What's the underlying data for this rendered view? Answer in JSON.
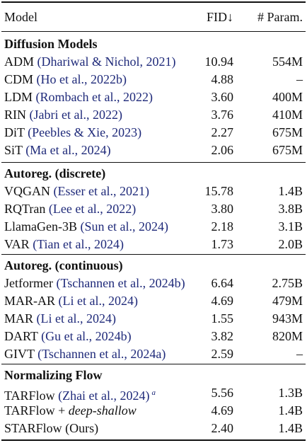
{
  "header": {
    "model": "Model",
    "fid": "FID↓",
    "params": "# Param."
  },
  "groups": [
    {
      "title": "Diffusion Models",
      "rows": [
        {
          "name": "ADM",
          "cite": "(Dhariwal & Nichol, 2021)",
          "fid": "10.94",
          "params": "554M"
        },
        {
          "name": "CDM",
          "cite": "(Ho et al., 2022b)",
          "fid": "4.88",
          "params": "–"
        },
        {
          "name": "LDM",
          "cite": "(Rombach et al., 2022)",
          "fid": "3.60",
          "params": "400M"
        },
        {
          "name": "RIN",
          "cite": "(Jabri et al., 2022)",
          "fid": "3.76",
          "params": "410M"
        },
        {
          "name": "DiT",
          "cite": "(Peebles & Xie, 2023)",
          "fid": "2.27",
          "params": "675M"
        },
        {
          "name": "SiT",
          "cite": "(Ma et al., 2024)",
          "fid": "2.06",
          "params": "675M"
        }
      ]
    },
    {
      "title": "Autoreg. (discrete)",
      "rows": [
        {
          "name": "VQGAN",
          "cite": "(Esser et al., 2021)",
          "fid": "15.78",
          "params": "1.4B"
        },
        {
          "name": "RQTran",
          "cite": "(Lee et al., 2022)",
          "fid": "3.80",
          "params": "3.8B"
        },
        {
          "name": "LlamaGen-3B",
          "cite": "(Sun et al., 2024)",
          "fid": "2.18",
          "params": "3.1B"
        },
        {
          "name": "VAR",
          "cite": "(Tian et al., 2024)",
          "fid": "1.73",
          "params": "2.0B"
        }
      ]
    },
    {
      "title": "Autoreg. (continuous)",
      "rows": [
        {
          "name": "Jetformer",
          "cite": "(Tschannen et al., 2024b)",
          "fid": "6.64",
          "params": "2.75B"
        },
        {
          "name": "MAR-AR",
          "cite": "(Li et al., 2024)",
          "fid": "4.69",
          "params": "479M"
        },
        {
          "name": "MAR",
          "cite": "(Li et al., 2024)",
          "fid": "1.55",
          "params": "943M"
        },
        {
          "name": "DART",
          "cite": "(Gu et al., 2024b)",
          "fid": "3.82",
          "params": "820M"
        },
        {
          "name": "GIVT",
          "cite": "(Tschannen et al., 2024a)",
          "fid": "2.59",
          "params": "–"
        }
      ]
    },
    {
      "title": "Normalizing Flow",
      "rows": [
        {
          "name": "TARFlow",
          "cite": "(Zhai et al., 2024)",
          "footnote": "a",
          "fid": "5.56",
          "params": "1.3B"
        },
        {
          "name": "TARFlow + ",
          "variant": "deep-shallow",
          "fid": "4.69",
          "params": "1.4B"
        },
        {
          "name": "STARFlow (Ours)",
          "fid": "2.40",
          "params": "1.4B"
        }
      ]
    }
  ],
  "colors": {
    "text": "#111111",
    "citation": "#1f2a7a"
  }
}
